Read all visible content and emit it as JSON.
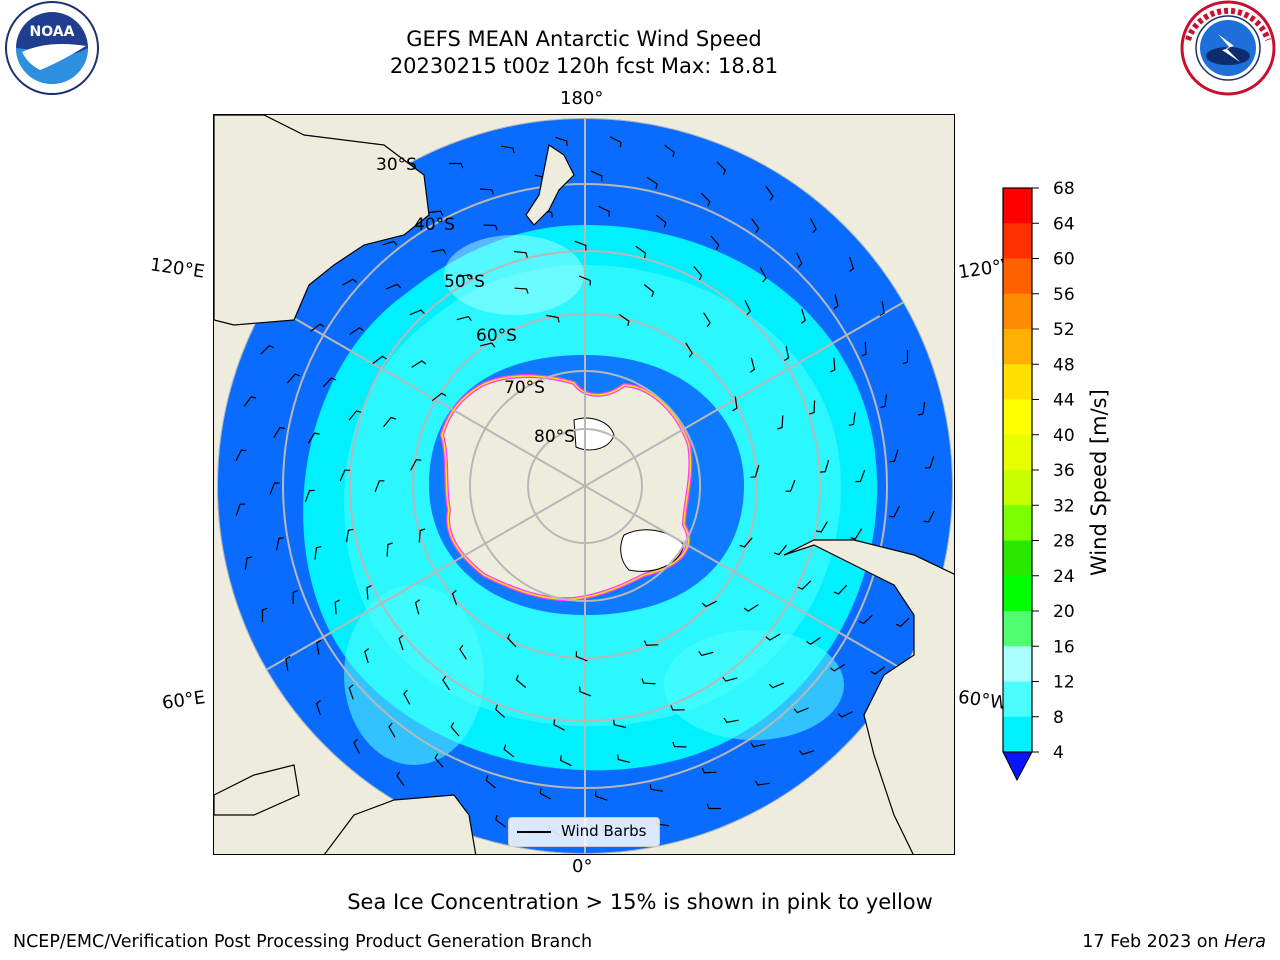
{
  "header": {
    "title_line1": "GEFS MEAN Antarctic Wind Speed",
    "title_line2": "20230215 t00z 120h fcst   Max: 18.81"
  },
  "logos": {
    "left": "noara-logo",
    "right": "nws-logo"
  },
  "map": {
    "projection": "south-polar-stereographic",
    "lon_labels": {
      "top": "180°",
      "bottom": "0°",
      "left_upper": "120°E",
      "right_upper": "120°W",
      "left_lower": "60°E",
      "right_lower": "60°W"
    },
    "lat_labels": [
      "30°S",
      "40°S",
      "50°S",
      "60°S",
      "70°S",
      "80°S"
    ],
    "colors": {
      "ocean_deep": "#0a6cff",
      "ocean_mid": "#00f0ff",
      "ocean_light": "#4cfdfd",
      "land": "#eeecdc",
      "ice_edge": "#ff3bff",
      "graticule": "#b8b8b8"
    },
    "legend_label": "Wind Barbs"
  },
  "colorbar": {
    "label": "Wind Speed [m/s]",
    "ticks": [
      "68",
      "64",
      "60",
      "56",
      "52",
      "48",
      "44",
      "40",
      "36",
      "32",
      "28",
      "24",
      "20",
      "16",
      "12",
      "8",
      "4"
    ],
    "colors": [
      "#ff0000",
      "#ff3000",
      "#ff6000",
      "#ff8c00",
      "#ffb000",
      "#ffe000",
      "#ffff00",
      "#e8ff00",
      "#c8ff00",
      "#7cff00",
      "#28e800",
      "#00ff00",
      "#50ff70",
      "#aaffff",
      "#4cfdfd",
      "#00f0ff",
      "#0a6cff"
    ],
    "under_color": "#0a14ff"
  },
  "footer": {
    "sea_ice_note": "Sea Ice Concentration > 15% is shown in pink to yellow",
    "credit": "NCEP/EMC/Verification Post Processing Product Generation Branch",
    "date": "17 Feb 2023 on ",
    "machine": "Hera"
  }
}
